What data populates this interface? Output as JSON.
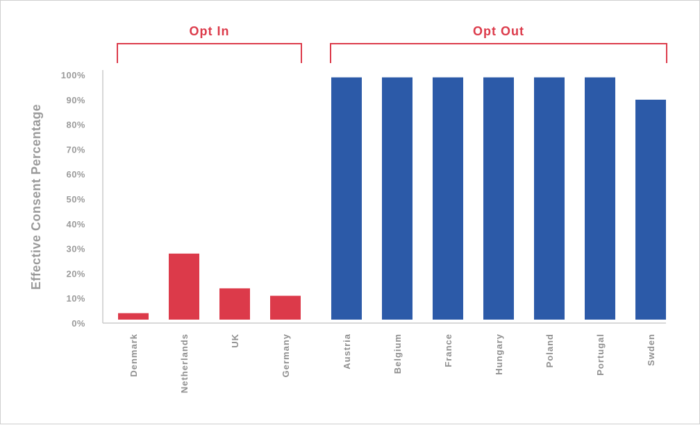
{
  "chart_data": {
    "type": "bar",
    "title": "",
    "ylabel": "Effective Consent Percentage",
    "xlabel": "",
    "ylim": [
      0,
      100
    ],
    "yticks": [
      "0%",
      "10%",
      "20%",
      "30%",
      "40%",
      "50%",
      "60%",
      "70%",
      "80%",
      "90%",
      "100%"
    ],
    "categories": [
      "Denmark",
      "Netherlands",
      "UK",
      "Germany",
      "Austria",
      "Belgium",
      "France",
      "Hungary",
      "Poland",
      "Portugal",
      "Swden"
    ],
    "values": [
      4,
      28,
      14,
      11,
      99,
      99,
      99,
      99,
      99,
      99,
      90
    ],
    "groups": [
      {
        "name": "Opt In",
        "count": 4,
        "color": "#dc3a4a"
      },
      {
        "name": "Opt Out",
        "count": 7,
        "color": "#2c5aa8"
      }
    ],
    "grid": false,
    "legend": "none"
  }
}
